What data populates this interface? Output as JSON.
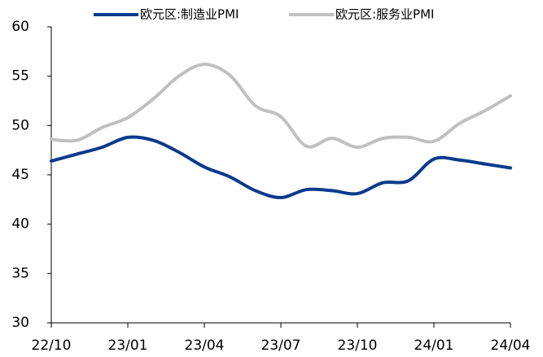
{
  "chart_data": {
    "type": "line",
    "categories": [
      "22/10",
      null,
      null,
      "23/01",
      null,
      null,
      "23/04",
      null,
      null,
      "23/07",
      null,
      null,
      "23/10",
      null,
      null,
      "24/01",
      null,
      null,
      "24/04"
    ],
    "series": [
      {
        "name": "欧元区:制造业PMI",
        "color": "#0a3a8c",
        "values": [
          46.4,
          47.1,
          47.8,
          48.8,
          48.5,
          47.3,
          45.8,
          44.8,
          43.4,
          42.7,
          43.5,
          43.4,
          43.1,
          44.2,
          44.4,
          46.6,
          46.5,
          46.1,
          45.7
        ]
      },
      {
        "name": "欧元区:服务业PMI",
        "color": "#c0c0c0",
        "values": [
          48.6,
          48.5,
          49.8,
          50.8,
          52.7,
          55.0,
          56.2,
          55.1,
          52.0,
          50.9,
          47.9,
          48.7,
          47.8,
          48.7,
          48.8,
          48.4,
          50.2,
          51.5,
          53.0
        ]
      }
    ],
    "ylim": [
      30,
      60
    ],
    "yticks": [
      30,
      35,
      40,
      45,
      50,
      55,
      60
    ],
    "grid": false,
    "legend": "top"
  }
}
